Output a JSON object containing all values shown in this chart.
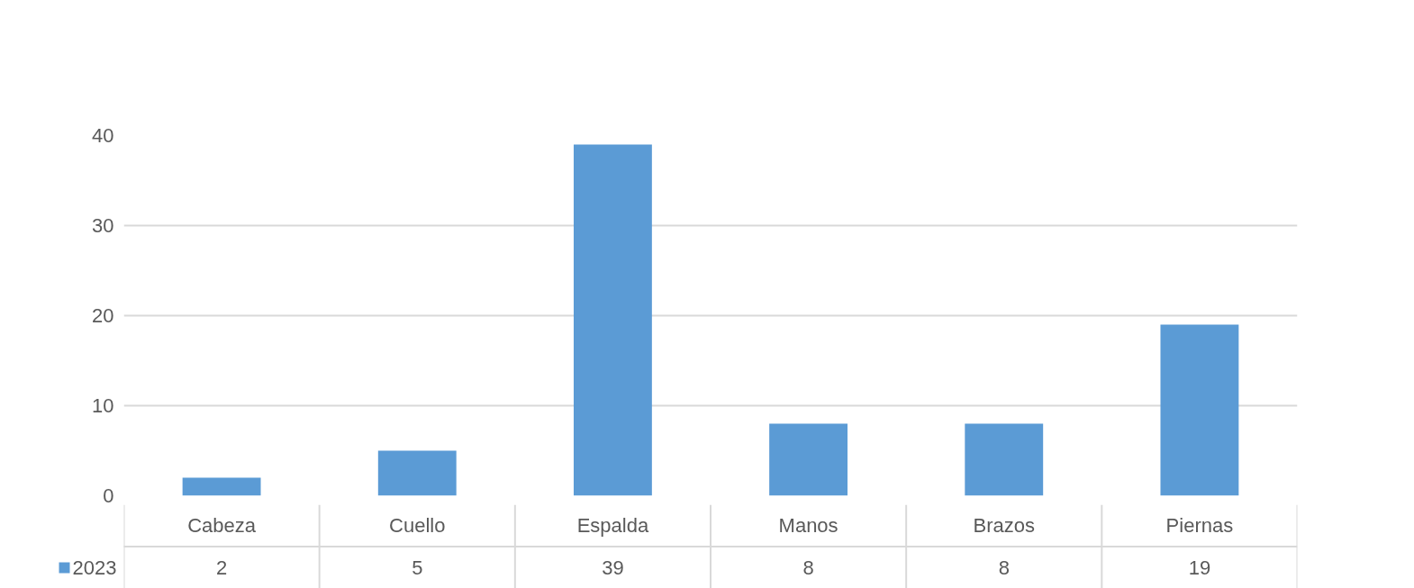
{
  "chart_data": {
    "type": "bar",
    "categories": [
      "Cabeza",
      "Cuello",
      "Espalda",
      "Manos",
      "Brazos",
      "Piernas"
    ],
    "series": [
      {
        "name": "2023",
        "color": "#5b9bd5",
        "values": [
          2,
          5,
          39,
          8,
          8,
          19
        ]
      }
    ],
    "ylim": [
      0,
      40
    ],
    "yticks": [
      0,
      10,
      20,
      30,
      40
    ],
    "grid": "y",
    "data_labels": true
  }
}
